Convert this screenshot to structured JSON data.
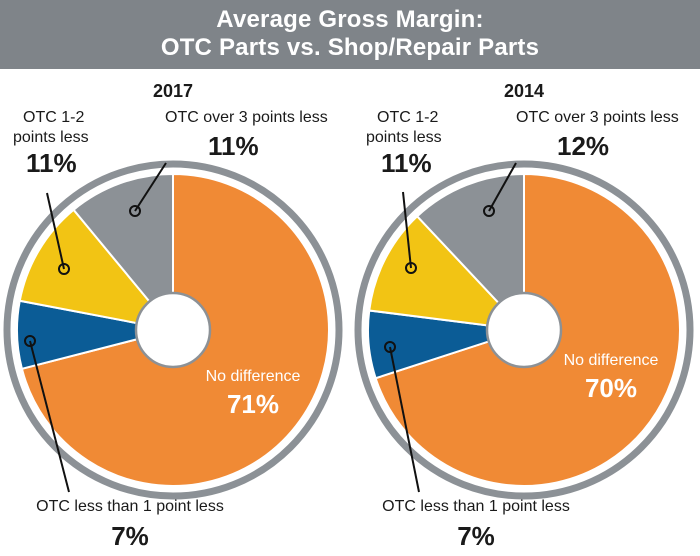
{
  "title": {
    "line1": "Average Gross Margin:",
    "line2": "OTC Parts vs. Shop/Repair Parts"
  },
  "colors": {
    "header_bg": "#7f8489",
    "no_difference": "#f08a35",
    "less_than_1": "#0b5c96",
    "one_to_two": "#f2c414",
    "over_3": "#8c9196",
    "ring": "#8c9196"
  },
  "chart_data": [
    {
      "type": "pie",
      "title": "2017",
      "slices": [
        {
          "label": "No difference",
          "value": 71,
          "display": "71%"
        },
        {
          "label": "OTC less than 1 point less",
          "value": 7,
          "display": "7%"
        },
        {
          "label": "OTC 1-2 points less",
          "value": 11,
          "display": "11%"
        },
        {
          "label": "OTC over 3 points less",
          "value": 11,
          "display": "11%"
        }
      ]
    },
    {
      "type": "pie",
      "title": "2014",
      "slices": [
        {
          "label": "No difference",
          "value": 70,
          "display": "70%"
        },
        {
          "label": "OTC less than 1 point less",
          "value": 7,
          "display": "7%"
        },
        {
          "label": "OTC 1-2 points less",
          "value": 11,
          "display": "11%"
        },
        {
          "label": "OTC over 3 points less",
          "value": 12,
          "display": "12%"
        }
      ]
    }
  ]
}
